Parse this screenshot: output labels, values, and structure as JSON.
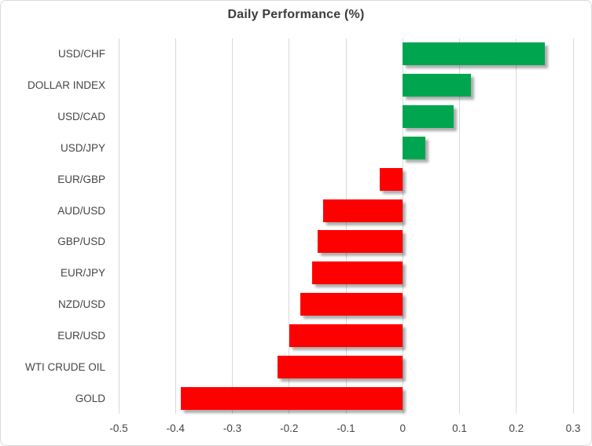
{
  "chart_data": {
    "type": "bar",
    "orientation": "horizontal",
    "title": "Daily Performance (%)",
    "categories": [
      "USD/CHF",
      "DOLLAR INDEX",
      "USD/CAD",
      "USD/JPY",
      "EUR/GBP",
      "AUD/USD",
      "GBP/USD",
      "EUR/JPY",
      "NZD/USD",
      "EUR/USD",
      "WTI CRUDE OIL",
      "GOLD"
    ],
    "values": [
      0.25,
      0.12,
      0.09,
      0.04,
      -0.04,
      -0.14,
      -0.15,
      -0.16,
      -0.18,
      -0.2,
      -0.22,
      -0.39
    ],
    "xlim": [
      -0.5,
      0.3
    ],
    "x_ticks": [
      -0.5,
      -0.4,
      -0.3,
      -0.2,
      -0.1,
      0,
      0.1,
      0.2,
      0.3
    ],
    "x_tick_labels": [
      "-0.5",
      "-0.4",
      "-0.3",
      "-0.2",
      "-0.1",
      "0",
      "0.1",
      "0.2",
      "0.3"
    ],
    "grid": "vertical-on",
    "legend": "none",
    "xlabel": "",
    "ylabel": "",
    "colors": {
      "positive_bar": "#00A64F",
      "negative_bar": "#FF0000",
      "gridline": "#D9D9D9",
      "border": "#D9D9D9",
      "title_text": "#3B3B3B",
      "axis_text": "#454545"
    }
  }
}
